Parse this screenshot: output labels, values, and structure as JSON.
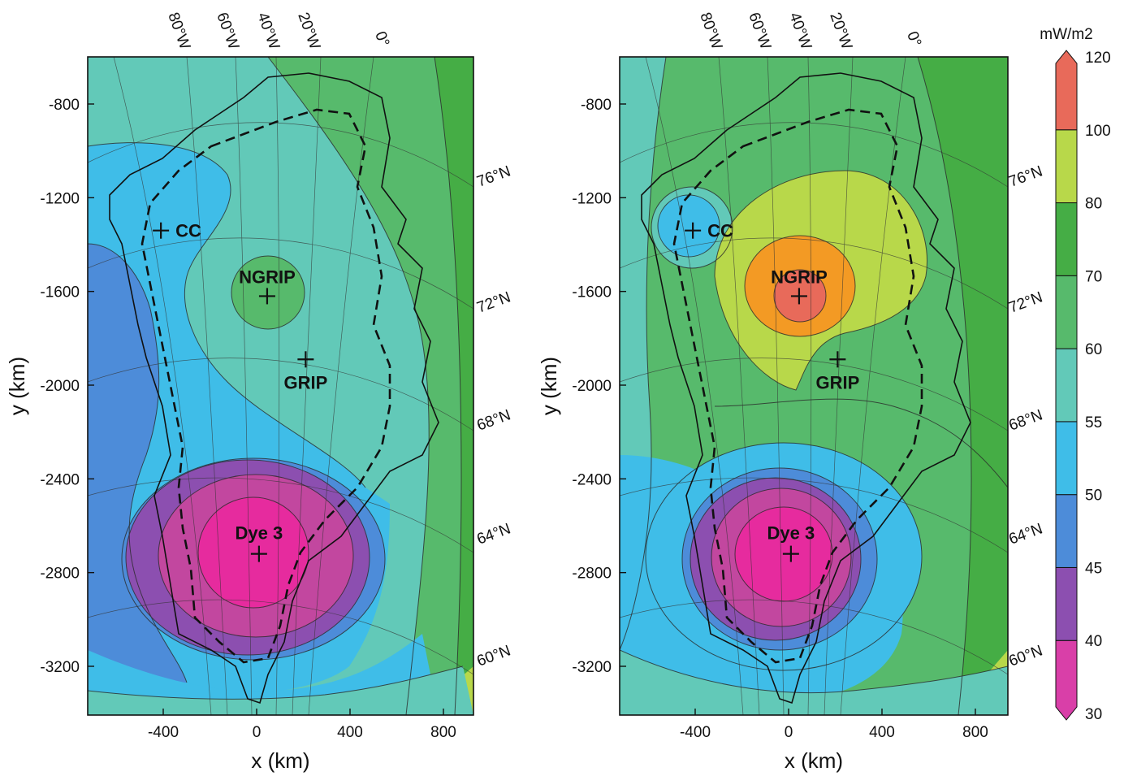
{
  "figure": {
    "x_label": "x (km)",
    "y_label": "y (km)",
    "x_ticks": [
      "-400",
      "0",
      "400",
      "800"
    ],
    "y_ticks": [
      "-800",
      "-1200",
      "-1600",
      "-2000",
      "-2400",
      "-2800",
      "-3200"
    ],
    "lon_labels": [
      "80°W",
      "60°W",
      "40°W",
      "20°W",
      "0°"
    ],
    "lat_labels": [
      "76°N",
      "72°N",
      "68°N",
      "64°N",
      "60°N"
    ],
    "sites": [
      {
        "name": "CC",
        "x_km": -410,
        "y_km": -1340
      },
      {
        "name": "NGRIP",
        "x_km": 45,
        "y_km": -1620
      },
      {
        "name": "GRIP",
        "x_km": 210,
        "y_km": -1890
      },
      {
        "name": "Dye 3",
        "x_km": 10,
        "y_km": -2720
      }
    ]
  },
  "colorbar": {
    "unit": "mW/m2",
    "levels": [
      "30",
      "40",
      "45",
      "50",
      "55",
      "60",
      "70",
      "80",
      "100",
      "120"
    ],
    "colors": [
      "#d93fa8",
      "#8c4fb0",
      "#4d8cd9",
      "#3fbde8",
      "#62c9b8",
      "#57ba6c",
      "#45ad45",
      "#b8d84a",
      "#f39a24",
      "#e86a5a"
    ]
  },
  "panels": [
    {
      "id": "left",
      "description_hidden": true
    },
    {
      "id": "right",
      "description_hidden": true
    }
  ]
}
